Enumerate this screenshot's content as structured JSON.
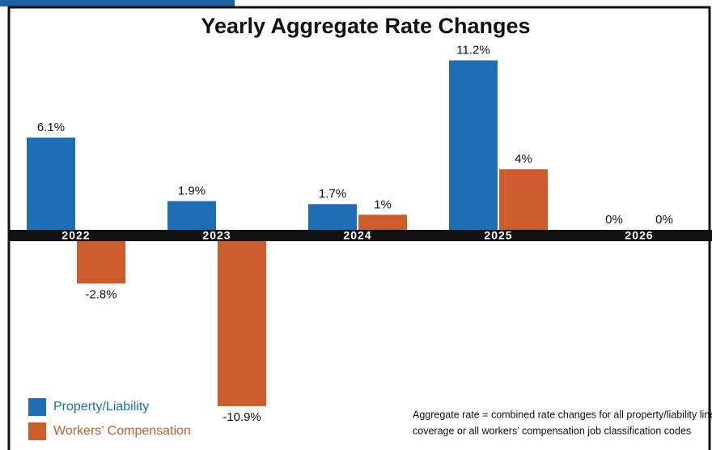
{
  "chart_data": {
    "type": "bar",
    "title": "Yearly Aggregate Rate Changes",
    "categories": [
      "2022",
      "2023",
      "2024",
      "2025",
      "2026"
    ],
    "series": [
      {
        "name": "Property/Liability",
        "color": "#1f6db3",
        "values": [
          6.1,
          1.9,
          1.7,
          11.2,
          0
        ],
        "value_labels": [
          "6.1%",
          "1.9%",
          "1.7%",
          "11.2%",
          "0%"
        ]
      },
      {
        "name": "Workers’ Compensation",
        "color": "#cc5c2c",
        "values": [
          -2.8,
          -10.9,
          1,
          4,
          0
        ],
        "value_labels": [
          "-2.8%",
          "-10.9%",
          "1%",
          "4%",
          "0%"
        ]
      }
    ],
    "legend": "bottom-left",
    "footnote": [
      "Aggregate rate = combined rate changes for all property/liability lines of",
      "coverage or all workers’ compensation job classification codes"
    ]
  }
}
